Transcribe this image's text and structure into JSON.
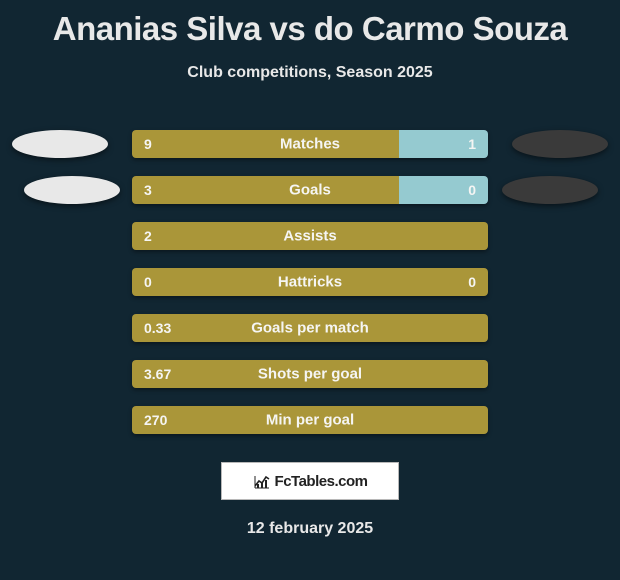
{
  "page": {
    "title": "Ananias Silva vs do Carmo Souza",
    "subtitle": "Club competitions, Season 2025",
    "date": "12 february 2025",
    "background_color": "#112632"
  },
  "colors": {
    "bar_left": "#aa9639",
    "bar_right": "#95cad0",
    "text_light": "#f5f5f3",
    "badge_left": "#e8e8e8",
    "badge_right": "#3a3a3a"
  },
  "stats": [
    {
      "label": "Matches",
      "left_val": "9",
      "right_val": "1",
      "left_pct": 75,
      "right_pct": 25
    },
    {
      "label": "Goals",
      "left_val": "3",
      "right_val": "0",
      "left_pct": 75,
      "right_pct": 25
    },
    {
      "label": "Assists",
      "left_val": "2",
      "right_val": "",
      "left_pct": 100,
      "right_pct": 0
    },
    {
      "label": "Hattricks",
      "left_val": "0",
      "right_val": "0",
      "left_pct": 100,
      "right_pct": 0
    },
    {
      "label": "Goals per match",
      "left_val": "0.33",
      "right_val": "",
      "left_pct": 100,
      "right_pct": 0
    },
    {
      "label": "Shots per goal",
      "left_val": "3.67",
      "right_val": "",
      "left_pct": 100,
      "right_pct": 0
    },
    {
      "label": "Min per goal",
      "left_val": "270",
      "right_val": "",
      "left_pct": 100,
      "right_pct": 0
    }
  ],
  "branding": {
    "text": "FcTables.com"
  }
}
